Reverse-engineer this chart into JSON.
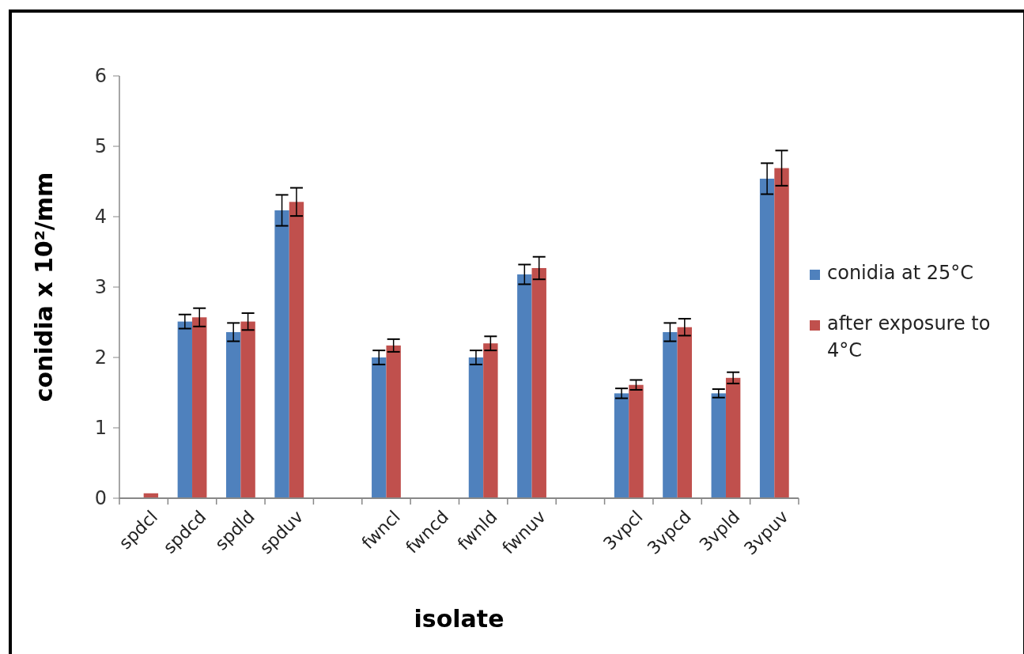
{
  "chart_data": {
    "type": "bar",
    "xlabel": "isolate",
    "ylabel": "conidia x 10²/mm",
    "categories": [
      "spdcl",
      "spdcd",
      "spdld",
      "spduv",
      null,
      "fwncl",
      "fwncd",
      "fwnld",
      "fwnuv",
      null,
      "3vpcl",
      "3vpcd",
      "3vpld",
      "3vpuv"
    ],
    "series": [
      {
        "name": "conidia at 25°C",
        "color": "#4f81bd",
        "values": [
          0,
          2.51,
          2.36,
          4.09,
          null,
          2.0,
          0,
          2.0,
          3.18,
          null,
          1.49,
          2.36,
          1.49,
          4.54
        ],
        "errors": [
          null,
          0.1,
          0.13,
          0.22,
          null,
          0.1,
          null,
          0.1,
          0.14,
          null,
          0.07,
          0.13,
          0.06,
          0.22
        ]
      },
      {
        "name": " after exposure to 4°C",
        "color": "#c0504d",
        "values": [
          0.07,
          2.57,
          2.51,
          4.21,
          null,
          2.17,
          0,
          2.2,
          3.27,
          null,
          1.61,
          2.43,
          1.71,
          4.69
        ],
        "errors": [
          null,
          0.13,
          0.12,
          0.2,
          null,
          0.09,
          null,
          0.1,
          0.16,
          null,
          0.07,
          0.12,
          0.08,
          0.25
        ]
      }
    ],
    "ylim": [
      0,
      6
    ],
    "yticks": [
      0,
      1,
      2,
      3,
      4,
      5,
      6
    ],
    "grid": false,
    "legend": "right"
  }
}
